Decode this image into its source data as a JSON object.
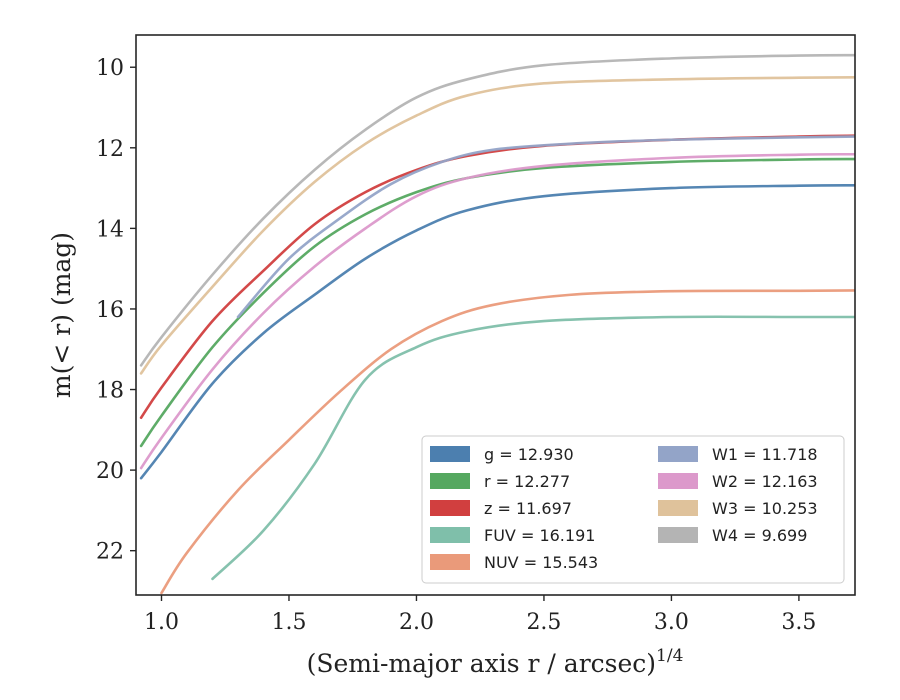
{
  "chart_data": {
    "type": "line",
    "xlabel": "(Semi-major axis r / arcsec)",
    "xlabel_power": "1/4",
    "ylabel": "m(< r) (mag)",
    "xlim": [
      0.9,
      3.72
    ],
    "ylim": [
      23.1,
      9.2
    ],
    "y_inverted": true,
    "x_ticks": [
      1.0,
      1.5,
      2.0,
      2.5,
      3.0,
      3.5
    ],
    "x_tick_labels": [
      "1.0",
      "1.5",
      "2.0",
      "2.5",
      "3.0",
      "3.5"
    ],
    "y_ticks": [
      10,
      12,
      14,
      16,
      18,
      20,
      22
    ],
    "y_tick_labels": [
      "10",
      "12",
      "14",
      "16",
      "18",
      "20",
      "22"
    ],
    "grid": false,
    "legend_position": "lower-right",
    "legend_columns": 2,
    "series": [
      {
        "name": "g",
        "label": "g = 12.930",
        "color": "#4C7FAF",
        "x": [
          0.92,
          1.0,
          1.2,
          1.4,
          1.6,
          1.8,
          2.0,
          2.2,
          2.5,
          3.0,
          3.5,
          3.72
        ],
        "y": [
          20.2,
          19.55,
          17.85,
          16.6,
          15.65,
          14.75,
          14.05,
          13.55,
          13.2,
          13.0,
          12.94,
          12.93
        ]
      },
      {
        "name": "r",
        "label": "r = 12.277",
        "color": "#55A860",
        "x": [
          0.92,
          1.0,
          1.2,
          1.4,
          1.6,
          1.8,
          2.0,
          2.2,
          2.5,
          3.0,
          3.5,
          3.72
        ],
        "y": [
          19.4,
          18.65,
          16.95,
          15.6,
          14.45,
          13.65,
          13.1,
          12.75,
          12.5,
          12.35,
          12.29,
          12.28
        ]
      },
      {
        "name": "z",
        "label": "z = 11.697",
        "color": "#D13F3F",
        "x": [
          0.92,
          1.0,
          1.2,
          1.4,
          1.6,
          1.8,
          2.0,
          2.2,
          2.5,
          3.0,
          3.5,
          3.72
        ],
        "y": [
          18.7,
          17.95,
          16.3,
          15.05,
          13.9,
          13.1,
          12.55,
          12.2,
          11.95,
          11.8,
          11.72,
          11.7
        ]
      },
      {
        "name": "FUV",
        "label": "FUV = 16.191",
        "color": "#7FBFAA",
        "x": [
          1.2,
          1.4,
          1.6,
          1.8,
          2.0,
          2.2,
          2.5,
          3.0,
          3.5,
          3.72
        ],
        "y": [
          22.7,
          21.5,
          19.85,
          17.75,
          16.95,
          16.55,
          16.3,
          16.2,
          16.2,
          16.2
        ]
      },
      {
        "name": "NUV",
        "label": "NUV = 15.543",
        "color": "#EA9A7A",
        "x": [
          1.0,
          1.1,
          1.3,
          1.5,
          1.7,
          1.9,
          2.1,
          2.3,
          2.6,
          3.0,
          3.5,
          3.72
        ],
        "y": [
          23.05,
          22.05,
          20.5,
          19.25,
          18.05,
          17.0,
          16.3,
          15.9,
          15.65,
          15.56,
          15.55,
          15.54
        ]
      },
      {
        "name": "W1",
        "label": "W1 = 11.718",
        "color": "#93A4C8",
        "x": [
          1.3,
          1.5,
          1.7,
          1.9,
          2.1,
          2.3,
          2.6,
          3.0,
          3.5,
          3.72
        ],
        "y": [
          16.2,
          14.75,
          13.75,
          12.9,
          12.35,
          12.05,
          11.9,
          11.8,
          11.74,
          11.72
        ]
      },
      {
        "name": "W2",
        "label": "W2 = 12.163",
        "color": "#DC99CB",
        "x": [
          0.92,
          1.0,
          1.2,
          1.4,
          1.6,
          1.8,
          2.0,
          2.2,
          2.5,
          3.0,
          3.5,
          3.72
        ],
        "y": [
          19.95,
          19.2,
          17.5,
          16.1,
          14.95,
          14.0,
          13.2,
          12.75,
          12.45,
          12.25,
          12.17,
          12.16
        ]
      },
      {
        "name": "W3",
        "label": "W3 = 10.253",
        "color": "#DFC29B",
        "x": [
          0.92,
          1.0,
          1.2,
          1.4,
          1.6,
          1.8,
          2.0,
          2.2,
          2.5,
          3.0,
          3.5,
          3.72
        ],
        "y": [
          17.6,
          16.9,
          15.45,
          14.05,
          12.85,
          11.9,
          11.2,
          10.7,
          10.4,
          10.3,
          10.26,
          10.25
        ]
      },
      {
        "name": "W4",
        "label": "W4 = 9.699",
        "color": "#B4B4B4",
        "x": [
          0.92,
          1.0,
          1.2,
          1.4,
          1.6,
          1.8,
          2.0,
          2.2,
          2.5,
          3.0,
          3.5,
          3.72
        ],
        "y": [
          17.4,
          16.7,
          15.15,
          13.75,
          12.55,
          11.55,
          10.75,
          10.3,
          9.95,
          9.78,
          9.71,
          9.7
        ]
      }
    ]
  }
}
